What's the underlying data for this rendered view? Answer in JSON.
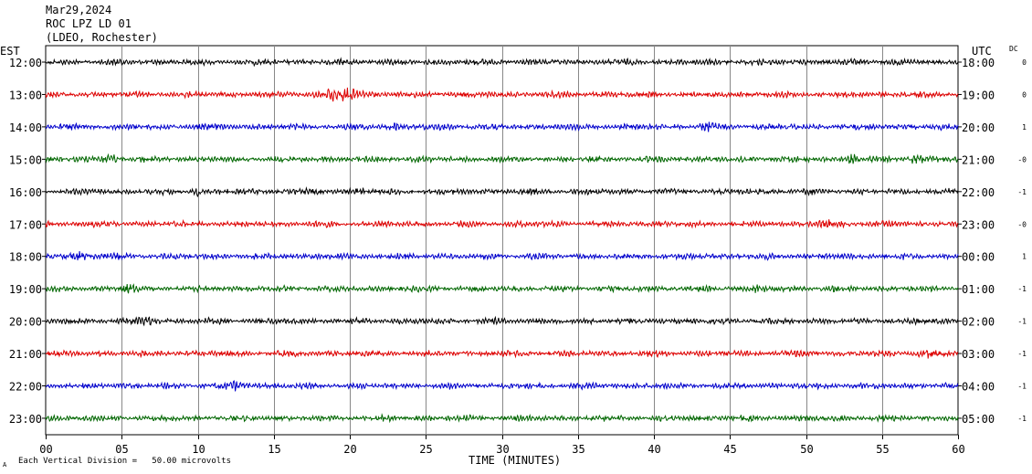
{
  "header": {
    "date": "Mar29,2024",
    "station": "ROC LPZ LD 01",
    "network": "(LDEO, Rochester)"
  },
  "left_zone_label": "EST",
  "right_zone_label": "UTC",
  "dc_header": "DC",
  "scale_note": "Each Vertical Division =   50.00 microvolts",
  "corner_mark": "A",
  "chart_data": {
    "type": "line",
    "title": "Mar29,2024",
    "xlabel": "TIME (MINUTES)",
    "xlim": [
      0,
      60
    ],
    "x_ticks": [
      "00",
      "05",
      "10",
      "15",
      "20",
      "25",
      "30",
      "35",
      "40",
      "45",
      "50",
      "55",
      "60"
    ],
    "grid": true,
    "colors": [
      "#000000",
      "#dd0000",
      "#0000cc",
      "#006600"
    ],
    "rows": [
      {
        "est": "12:00",
        "utc": "18:00",
        "dc": "0",
        "color": "#000000",
        "events": []
      },
      {
        "est": "13:00",
        "utc": "19:00",
        "dc": "0",
        "color": "#dd0000",
        "events": [
          {
            "minute": 19.3,
            "amp": 2.2,
            "width": 1.2
          }
        ]
      },
      {
        "est": "14:00",
        "utc": "20:00",
        "dc": "1",
        "color": "#0000cc",
        "events": [
          {
            "minute": 43.5,
            "amp": 1.4,
            "width": 0.4
          },
          {
            "minute": 23.0,
            "amp": 1.0,
            "width": 0.3
          }
        ]
      },
      {
        "est": "15:00",
        "utc": "21:00",
        "dc": "-0",
        "color": "#006600",
        "events": [
          {
            "minute": 4.2,
            "amp": 1.3,
            "width": 0.6
          },
          {
            "minute": 53.0,
            "amp": 1.2,
            "width": 0.4
          },
          {
            "minute": 57.2,
            "amp": 1.2,
            "width": 0.4
          }
        ]
      },
      {
        "est": "16:00",
        "utc": "22:00",
        "dc": "-1",
        "color": "#000000",
        "events": [
          {
            "minute": 10.0,
            "amp": 1.0,
            "width": 0.5
          },
          {
            "minute": 20.5,
            "amp": 1.0,
            "width": 0.4
          }
        ]
      },
      {
        "est": "17:00",
        "utc": "23:00",
        "dc": "-0",
        "color": "#dd0000",
        "events": [
          {
            "minute": 51.5,
            "amp": 1.1,
            "width": 0.6
          }
        ]
      },
      {
        "est": "18:00",
        "utc": "00:00",
        "dc": "1",
        "color": "#0000cc",
        "events": [
          {
            "minute": 2.5,
            "amp": 1.1,
            "width": 0.8
          }
        ]
      },
      {
        "est": "19:00",
        "utc": "01:00",
        "dc": "-1",
        "color": "#006600",
        "events": [
          {
            "minute": 5.5,
            "amp": 1.3,
            "width": 0.5
          },
          {
            "minute": 46.8,
            "amp": 1.2,
            "width": 0.4
          }
        ]
      },
      {
        "est": "20:00",
        "utc": "02:00",
        "dc": "-1",
        "color": "#000000",
        "events": [
          {
            "minute": 6.5,
            "amp": 1.0,
            "width": 0.6
          }
        ]
      },
      {
        "est": "21:00",
        "utc": "03:00",
        "dc": "-1",
        "color": "#dd0000",
        "events": [
          {
            "minute": 58.0,
            "amp": 1.1,
            "width": 0.5
          }
        ]
      },
      {
        "est": "22:00",
        "utc": "04:00",
        "dc": "-1",
        "color": "#0000cc",
        "events": [
          {
            "minute": 12.5,
            "amp": 1.0,
            "width": 0.6
          }
        ]
      },
      {
        "est": "23:00",
        "utc": "05:00",
        "dc": "-1",
        "color": "#006600",
        "events": []
      }
    ]
  }
}
